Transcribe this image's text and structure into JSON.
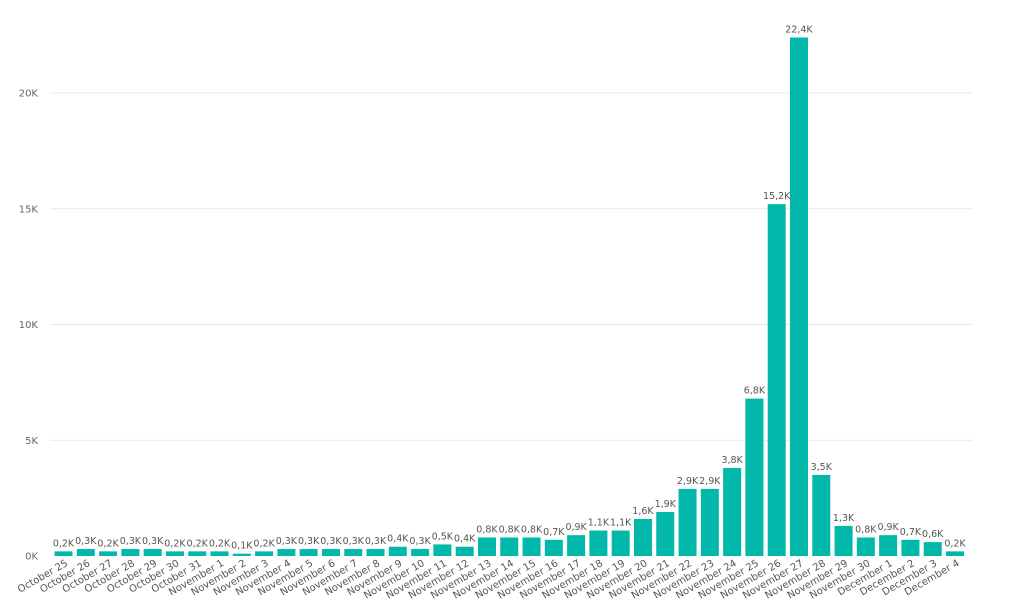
{
  "chart_data": {
    "type": "bar",
    "title": "",
    "xlabel": "",
    "ylabel": "",
    "ylim": [
      0,
      25000
    ],
    "grid": true,
    "bar_color": "#01B8AA",
    "yticks": [
      {
        "value": 0,
        "label": "0K"
      },
      {
        "value": 5000,
        "label": "5K"
      },
      {
        "value": 10000,
        "label": "10K"
      },
      {
        "value": 15000,
        "label": "15K"
      },
      {
        "value": 20000,
        "label": "20K"
      }
    ],
    "categories": [
      "October 25",
      "October 26",
      "October 27",
      "October 28",
      "October 29",
      "October 30",
      "October 31",
      "November 1",
      "November 2",
      "November 3",
      "November 4",
      "November 5",
      "November 6",
      "November 7",
      "November 8",
      "November 9",
      "November 10",
      "November 11",
      "November 12",
      "November 13",
      "November 14",
      "November 15",
      "November 16",
      "November 17",
      "November 18",
      "November 19",
      "November 20",
      "November 21",
      "November 22",
      "November 23",
      "November 24",
      "November 25",
      "November 26",
      "November 27",
      "November 28",
      "November 29",
      "November 30",
      "December 1",
      "December 2",
      "December 3",
      "December 4"
    ],
    "values": [
      200,
      300,
      200,
      300,
      300,
      200,
      200,
      200,
      100,
      200,
      300,
      300,
      300,
      300,
      300,
      400,
      300,
      500,
      400,
      800,
      800,
      800,
      700,
      900,
      1100,
      1100,
      1600,
      1900,
      2900,
      2900,
      3800,
      6800,
      15200,
      22400,
      3500,
      1300,
      800,
      900,
      700,
      600,
      200
    ],
    "data_labels": [
      "0,2K",
      "0,3K",
      "0,2K",
      "0,3K",
      "0,3K",
      "0,2K",
      "0,2K",
      "0,2K",
      "0,1K",
      "0,2K",
      "0,3K",
      "0,3K",
      "0,3K",
      "0,3K",
      "0,3K",
      "0,4K",
      "0,3K",
      "0,5K",
      "0,4K",
      "0,8K",
      "0,8K",
      "0,8K",
      "0,7K",
      "0,9K",
      "1,1K",
      "1,1K",
      "1,6K",
      "1,9K",
      "2,9K",
      "2,9K",
      "3,8K",
      "6,8K",
      "15,2K",
      "22,4K",
      "3,5K",
      "1,3K",
      "0,8K",
      "0,9K",
      "0,7K",
      "0,6K",
      "0,2K"
    ]
  }
}
